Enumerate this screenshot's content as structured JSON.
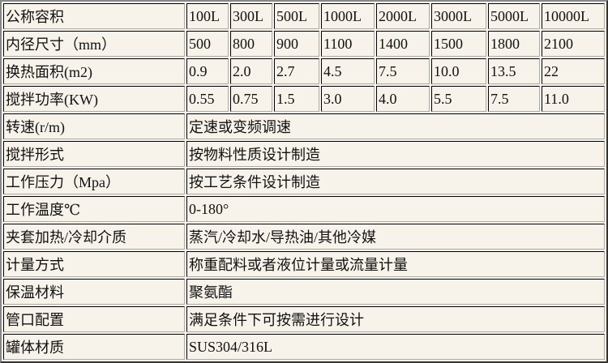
{
  "rows": [
    {
      "label": "公称容积",
      "values": [
        "100L",
        "300L",
        "500L",
        "1000L",
        "2000L",
        "3000L",
        "5000L",
        "10000L"
      ]
    },
    {
      "label": "内径尺寸（mm）",
      "values": [
        "500",
        "800",
        "900",
        "1100",
        "1400",
        "1500",
        "1800",
        "2100"
      ]
    },
    {
      "label": "换热面积(m2)",
      "values": [
        "0.9",
        "2.0",
        "2.7",
        "4.5",
        "7.5",
        "10.0",
        "13.5",
        "22"
      ]
    },
    {
      "label": "搅拌功率(KW)",
      "values": [
        "0.55",
        "0.75",
        "1.5",
        "3.0",
        "4.0",
        "5.5",
        "7.5",
        "11.0"
      ]
    },
    {
      "label": "转速(r/m)",
      "value": "定速或变频调速"
    },
    {
      "label": "搅拌形式",
      "value": "按物料性质设计制造"
    },
    {
      "label": "工作压力（Mpa）",
      "value": "按工艺条件设计制造"
    },
    {
      "label": "工作温度℃",
      "value": "0-180°"
    },
    {
      "label": "夹套加热/冷却介质",
      "value": "蒸汽/冷却水/导热油/其他冷媒"
    },
    {
      "label": "计量方式",
      "value": "称重配料或者液位计量或流量计量"
    },
    {
      "label": "保温材料",
      "value": "聚氨酯"
    },
    {
      "label": "管口配置",
      "value": "满足条件下可按需进行设计"
    },
    {
      "label": "罐体材质",
      "value": "SUS304/316L"
    }
  ]
}
